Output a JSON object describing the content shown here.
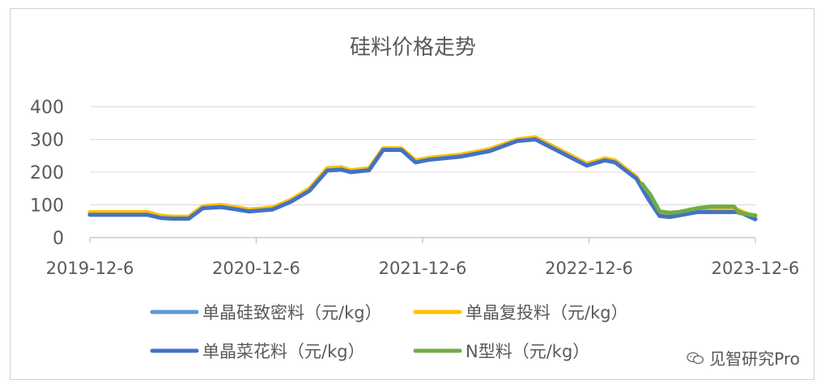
{
  "chart_data": {
    "type": "line",
    "title": "硅料价格走势",
    "xlabel": "",
    "ylabel": "",
    "x_ticks": [
      "2019-12-6",
      "2020-12-6",
      "2021-12-6",
      "2022-12-6",
      "2023-12-6"
    ],
    "x_range": [
      "2019-12-06",
      "2023-12-06"
    ],
    "y_ticks": [
      0,
      100,
      200,
      300,
      400
    ],
    "ylim": [
      0,
      400
    ],
    "grid": true,
    "legend_position": "bottom",
    "series": [
      {
        "name": "单晶硅致密料（元/kg）",
        "color": "#5b9bd5",
        "points": [
          [
            "2019-12-06",
            72
          ],
          [
            "2020-04-10",
            72
          ],
          [
            "2020-05-10",
            62
          ],
          [
            "2020-06-05",
            60
          ],
          [
            "2020-07-10",
            60
          ],
          [
            "2020-08-10",
            92
          ],
          [
            "2020-09-20",
            95
          ],
          [
            "2020-11-20",
            82
          ],
          [
            "2021-01-10",
            88
          ],
          [
            "2021-02-20",
            112
          ],
          [
            "2021-04-01",
            145
          ],
          [
            "2021-05-10",
            207
          ],
          [
            "2021-06-10",
            210
          ],
          [
            "2021-07-01",
            202
          ],
          [
            "2021-08-10",
            208
          ],
          [
            "2021-09-10",
            270
          ],
          [
            "2021-10-20",
            270
          ],
          [
            "2021-11-20",
            232
          ],
          [
            "2021-12-20",
            240
          ],
          [
            "2022-03-01",
            250
          ],
          [
            "2022-05-01",
            266
          ],
          [
            "2022-07-01",
            297
          ],
          [
            "2022-08-10",
            302
          ],
          [
            "2022-12-01",
            222
          ],
          [
            "2023-01-10",
            238
          ],
          [
            "2023-02-01",
            232
          ],
          [
            "2023-03-20",
            182
          ],
          [
            "2023-04-15",
            120
          ],
          [
            "2023-05-10",
            68
          ],
          [
            "2023-06-01",
            65
          ],
          [
            "2023-08-01",
            80
          ],
          [
            "2023-11-01",
            80
          ],
          [
            "2023-12-06",
            58
          ]
        ]
      },
      {
        "name": "单晶复投料（元/kg）",
        "color": "#ffc000",
        "points": [
          [
            "2019-12-06",
            78
          ],
          [
            "2020-04-10",
            78
          ],
          [
            "2020-05-10",
            67
          ],
          [
            "2020-06-05",
            64
          ],
          [
            "2020-07-10",
            64
          ],
          [
            "2020-08-10",
            96
          ],
          [
            "2020-09-20",
            100
          ],
          [
            "2020-11-20",
            86
          ],
          [
            "2021-01-10",
            92
          ],
          [
            "2021-02-20",
            116
          ],
          [
            "2021-04-01",
            150
          ],
          [
            "2021-05-10",
            212
          ],
          [
            "2021-06-10",
            215
          ],
          [
            "2021-07-01",
            206
          ],
          [
            "2021-08-10",
            212
          ],
          [
            "2021-09-10",
            273
          ],
          [
            "2021-10-20",
            273
          ],
          [
            "2021-11-20",
            236
          ],
          [
            "2021-12-20",
            244
          ],
          [
            "2022-03-01",
            254
          ],
          [
            "2022-05-01",
            270
          ],
          [
            "2022-07-01",
            300
          ],
          [
            "2022-08-10",
            307
          ],
          [
            "2022-12-01",
            226
          ],
          [
            "2023-01-10",
            242
          ],
          [
            "2023-02-01",
            236
          ],
          [
            "2023-03-20",
            186
          ],
          [
            "2023-04-15",
            124
          ],
          [
            "2023-05-10",
            72
          ],
          [
            "2023-06-01",
            69
          ],
          [
            "2023-08-01",
            84
          ],
          [
            "2023-11-01",
            84
          ],
          [
            "2023-12-06",
            62
          ]
        ]
      },
      {
        "name": "单晶菜花料（元/kg）",
        "color": "#4472c4",
        "points": [
          [
            "2019-12-06",
            70
          ],
          [
            "2020-04-10",
            70
          ],
          [
            "2020-05-10",
            60
          ],
          [
            "2020-06-05",
            58
          ],
          [
            "2020-07-10",
            58
          ],
          [
            "2020-08-10",
            90
          ],
          [
            "2020-09-20",
            93
          ],
          [
            "2020-11-20",
            80
          ],
          [
            "2021-01-10",
            86
          ],
          [
            "2021-02-20",
            110
          ],
          [
            "2021-04-01",
            143
          ],
          [
            "2021-05-10",
            205
          ],
          [
            "2021-06-10",
            208
          ],
          [
            "2021-07-01",
            200
          ],
          [
            "2021-08-10",
            206
          ],
          [
            "2021-09-10",
            268
          ],
          [
            "2021-10-20",
            268
          ],
          [
            "2021-11-20",
            230
          ],
          [
            "2021-12-20",
            238
          ],
          [
            "2022-03-01",
            248
          ],
          [
            "2022-05-01",
            264
          ],
          [
            "2022-07-01",
            295
          ],
          [
            "2022-08-10",
            300
          ],
          [
            "2022-12-01",
            220
          ],
          [
            "2023-01-10",
            236
          ],
          [
            "2023-02-01",
            230
          ],
          [
            "2023-03-20",
            180
          ],
          [
            "2023-04-15",
            118
          ],
          [
            "2023-05-10",
            66
          ],
          [
            "2023-06-01",
            63
          ],
          [
            "2023-08-01",
            78
          ],
          [
            "2023-11-01",
            78
          ],
          [
            "2023-12-06",
            56
          ]
        ]
      },
      {
        "name": "N型料（元/kg）",
        "color": "#70ad47",
        "points": [
          [
            "2023-04-01",
            165
          ],
          [
            "2023-04-20",
            130
          ],
          [
            "2023-05-10",
            80
          ],
          [
            "2023-06-01",
            76
          ],
          [
            "2023-06-20",
            78
          ],
          [
            "2023-08-01",
            90
          ],
          [
            "2023-09-01",
            95
          ],
          [
            "2023-10-20",
            95
          ],
          [
            "2023-11-01",
            75
          ],
          [
            "2023-12-06",
            68
          ]
        ]
      }
    ]
  },
  "watermark": {
    "text": "见智研究Pro",
    "icon": "wechat-icon"
  }
}
